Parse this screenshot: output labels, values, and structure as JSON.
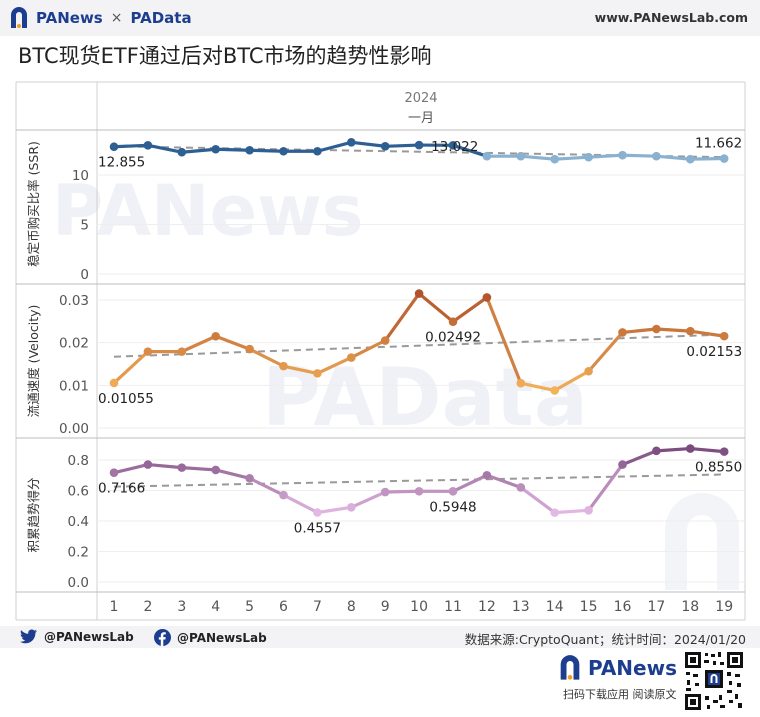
{
  "header": {
    "brand_left": "PANews",
    "brand_sep": "×",
    "brand_right": "PAData",
    "site": "www.PANewsLab.com",
    "title": "BTC现货ETF通过后对BTC市场的趋势性影响"
  },
  "watermarks": {
    "top": "PANews",
    "mid": "PAData"
  },
  "footer": {
    "twitter": "@PANewsLab",
    "facebook": "@PANewsLab",
    "source": "数据来源:CryptoQuant；统计时间：2024/01/20",
    "app_name": "PANews",
    "app_sub": "扫码下载应用  阅读原文"
  },
  "colors": {
    "ssr_dark": "#2e5f92",
    "ssr_light": "#a9cce3",
    "velocity_dark": "#b0522a",
    "velocity_light": "#f3b15a",
    "trend_dark": "#7a4b7d",
    "trend_light": "#e3b8e3",
    "trendline": "#999999"
  },
  "chart_data": {
    "type": "line",
    "header_year": "2024",
    "header_month": "一月",
    "x": [
      1,
      2,
      3,
      4,
      5,
      6,
      7,
      8,
      9,
      10,
      11,
      12,
      13,
      14,
      15,
      16,
      17,
      18,
      19
    ],
    "panels": [
      {
        "ylabel": "稳定币购买比率 (SSR)",
        "yticks": [
          0,
          5,
          10
        ],
        "ylim": [
          0,
          14.6
        ],
        "values": [
          12.855,
          13.0,
          12.3,
          12.6,
          12.5,
          12.4,
          12.4,
          13.3,
          12.9,
          13.022,
          13.0,
          11.9,
          11.9,
          11.6,
          11.8,
          12.0,
          11.9,
          11.6,
          11.662
        ],
        "trend": [
          12.9,
          11.8
        ],
        "labels": [
          {
            "x": 1,
            "text": "12.855",
            "pos": "below"
          },
          {
            "x": 10,
            "text": "13.022",
            "pos": "right"
          },
          {
            "x": 19,
            "text": "11.662",
            "pos": "above"
          }
        ]
      },
      {
        "ylabel": "流通速度 (Velocity)",
        "yticks": [
          "0.00",
          "0.01",
          "0.02",
          "0.03"
        ],
        "ytick_values": [
          0,
          0.01,
          0.02,
          0.03
        ],
        "ylim": [
          0,
          0.0335
        ],
        "values": [
          0.01055,
          0.0179,
          0.0179,
          0.0215,
          0.0185,
          0.0145,
          0.0128,
          0.0165,
          0.0205,
          0.0315,
          0.02492,
          0.0306,
          0.0105,
          0.0088,
          0.0133,
          0.0224,
          0.0232,
          0.0227,
          0.02153
        ],
        "trend": [
          0.0167,
          0.0219
        ],
        "labels": [
          {
            "x": 1,
            "text": "0.01055",
            "pos": "below"
          },
          {
            "x": 11,
            "text": "0.02492",
            "pos": "below"
          },
          {
            "x": 19,
            "text": "0.02153",
            "pos": "below"
          }
        ]
      },
      {
        "ylabel": "积累趋势得分",
        "yticks": [
          "0.0",
          "0.2",
          "0.4",
          "0.6",
          "0.8"
        ],
        "ytick_values": [
          0,
          0.2,
          0.4,
          0.6,
          0.8
        ],
        "ylim": [
          -0.06,
          0.9
        ],
        "values": [
          0.7166,
          0.77,
          0.75,
          0.735,
          0.68,
          0.57,
          0.4557,
          0.49,
          0.59,
          0.595,
          0.5948,
          0.7,
          0.62,
          0.455,
          0.47,
          0.77,
          0.86,
          0.875,
          0.855
        ],
        "trend": [
          0.625,
          0.705
        ],
        "labels": [
          {
            "x": 1,
            "text": "0.7166",
            "pos": "below"
          },
          {
            "x": 7,
            "text": "0.4557",
            "pos": "below"
          },
          {
            "x": 11,
            "text": "0.5948",
            "pos": "below"
          },
          {
            "x": 19,
            "text": "0.8550",
            "pos": "below"
          }
        ]
      }
    ]
  }
}
